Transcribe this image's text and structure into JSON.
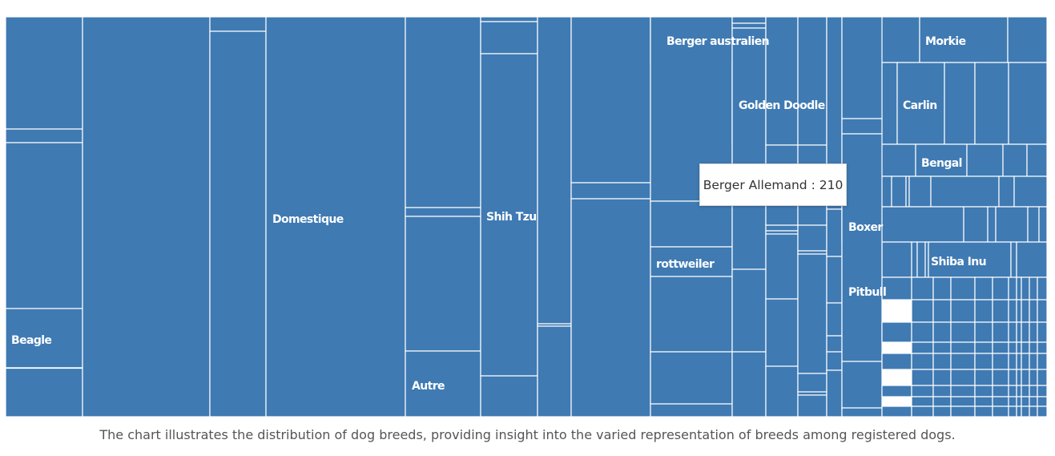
{
  "chart_data": {
    "type": "treemap",
    "tile_color": "#3f7ab3",
    "border_color": "#ffffff",
    "label_color": "#ffffff",
    "labels": [
      "Domestique",
      "Shih Tzu",
      "Autre",
      "Beagle",
      "Berger australien",
      "Morkie",
      "Golden Doodle",
      "Carlin",
      "Bengal",
      "rottweiler",
      "Boxer",
      "Shiba Inu",
      "Pitbull"
    ],
    "tooltip": {
      "label": "Berger Allemand",
      "value": 210,
      "text": "Berger Allemand : 210"
    }
  },
  "caption": "The chart illustrates the distribution of dog breeds, providing insight into the varied representation of breeds among registered dogs."
}
